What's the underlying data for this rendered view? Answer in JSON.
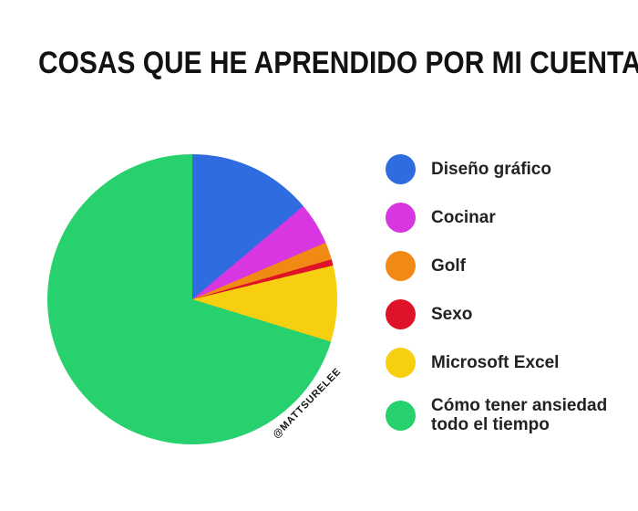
{
  "title": {
    "text": "COSAS QUE HE APRENDIDO POR MI CUENTA",
    "color": "#121212"
  },
  "watermark": {
    "text": "@MATTSURELEE"
  },
  "chart_data": {
    "type": "pie",
    "title": "COSAS QUE HE APRENDIDO POR MI CUENTA",
    "start_angle_deg": 0,
    "direction": "clockwise",
    "legend_position": "right",
    "background": "#ffffff",
    "slices": [
      {
        "label": "Diseño gráfico",
        "color": "#2e6cdf",
        "angle_deg": 50.0,
        "percent": 13.9
      },
      {
        "label": "Cocinar",
        "color": "#d836e0",
        "angle_deg": 17.0,
        "percent": 4.7
      },
      {
        "label": "Golf",
        "color": "#f08a14",
        "angle_deg": 7.0,
        "percent": 1.9
      },
      {
        "label": "Sexo",
        "color": "#de1228",
        "angle_deg": 2.5,
        "percent": 0.7
      },
      {
        "label": "Microsoft Excel",
        "color": "#f6cf10",
        "angle_deg": 30.5,
        "percent": 8.5
      },
      {
        "label": "Cómo tener ansiedad todo el tiempo",
        "color": "#26d16e",
        "angle_deg": 253.0,
        "percent": 70.3
      }
    ]
  }
}
